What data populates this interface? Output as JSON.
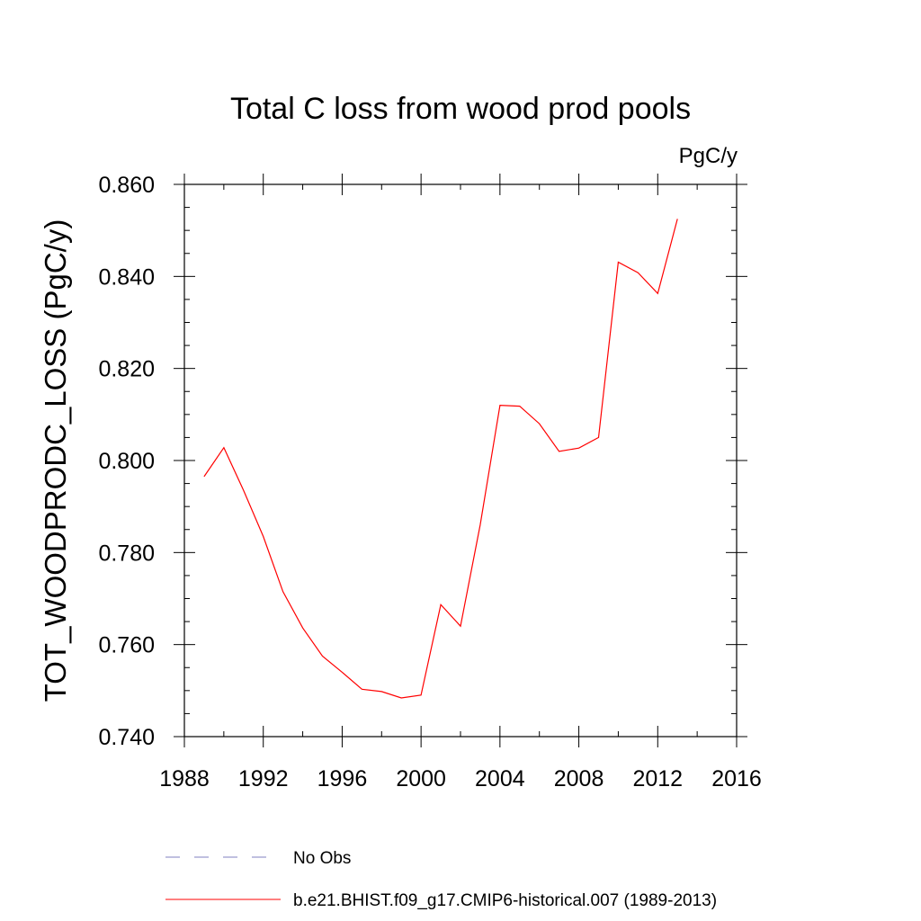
{
  "chart_data": {
    "type": "line",
    "title": "Total C loss from wood prod pools",
    "units_label": "PgC/y",
    "ylabel": "TOT_WOODPRODC_LOSS  (PgC/y)",
    "xlim": [
      1988,
      2016
    ],
    "ylim": [
      0.74,
      0.86
    ],
    "x_ticks": [
      1988,
      1992,
      1996,
      2000,
      2004,
      2008,
      2012,
      2016
    ],
    "y_ticks": [
      0.74,
      0.76,
      0.78,
      0.8,
      0.82,
      0.84,
      0.86
    ],
    "x_tick_labels": [
      "1988",
      "1992",
      "1996",
      "2000",
      "2004",
      "2008",
      "2012",
      "2016"
    ],
    "y_tick_labels": [
      "0.740",
      "0.760",
      "0.780",
      "0.800",
      "0.820",
      "0.840",
      "0.860"
    ],
    "grid": false,
    "legend_position": "bottom",
    "series": [
      {
        "name": "b.e21.BHIST.f09_g17.CMIP6-historical.007 (1989-2013)",
        "color": "#ff0000",
        "style": "solid",
        "x": [
          1989,
          1990,
          1991,
          1992,
          1993,
          1994,
          1995,
          1996,
          1997,
          1998,
          1999,
          2000,
          2001,
          2002,
          2003,
          2004,
          2005,
          2006,
          2007,
          2008,
          2009,
          2010,
          2011,
          2012,
          2013
        ],
        "y": [
          0.7965,
          0.8028,
          0.7935,
          0.7835,
          0.7715,
          0.7636,
          0.7575,
          0.754,
          0.7503,
          0.7498,
          0.7484,
          0.749,
          0.7687,
          0.764,
          0.786,
          0.812,
          0.8118,
          0.808,
          0.802,
          0.8027,
          0.805,
          0.8431,
          0.8408,
          0.8363,
          0.8525
        ]
      }
    ],
    "legend": [
      {
        "label": "No Obs",
        "color": "#8080c0",
        "style": "dashed"
      },
      {
        "label": "b.e21.BHIST.f09_g17.CMIP6-historical.007 (1989-2013)",
        "color": "#ff0000",
        "style": "solid"
      }
    ]
  }
}
